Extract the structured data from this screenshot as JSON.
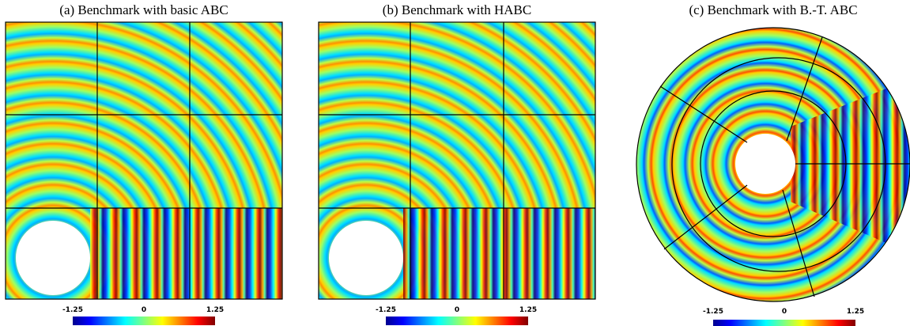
{
  "panels": [
    {
      "caption": "(a) Benchmark with basic ABC",
      "colorbar": {
        "ticks": [
          "-1.25",
          "0",
          "1.25"
        ]
      }
    },
    {
      "caption": "(b) Benchmark with HABC",
      "colorbar": {
        "ticks": [
          "-1.25",
          "0",
          "1.25"
        ]
      }
    },
    {
      "caption": "(c) Benchmark with B.-T. ABC",
      "colorbar": {
        "ticks": [
          "-1.25",
          "0",
          "1.25"
        ]
      }
    }
  ]
}
